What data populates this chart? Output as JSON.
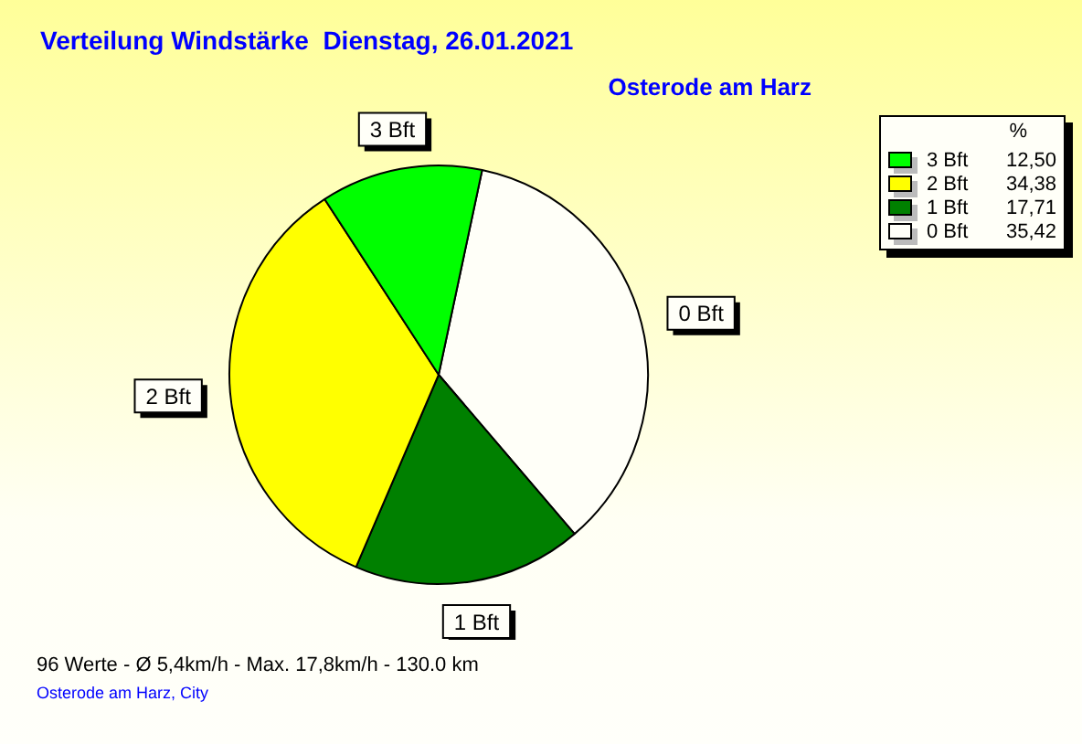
{
  "chart_data": {
    "type": "pie",
    "title": "Verteilung Windstärke  Dienstag, 26.01.2021",
    "subtitle": "Osterode am Harz",
    "legend_title": "%",
    "categories": [
      "3 Bft",
      "2 Bft",
      "1 Bft",
      "0 Bft"
    ],
    "values": [
      12.5,
      34.38,
      17.71,
      35.42
    ],
    "value_labels": [
      "12,50",
      "34,38",
      "17,71",
      "35,42"
    ],
    "colors": [
      "#00ff00",
      "#ffff00",
      "#008000",
      "#fffff8"
    ],
    "legend": "top right",
    "annotations": [
      "96 Werte   -   Ø 5,4km/h  -  Max. 17,8km/h   -   130.0 km",
      "Osterode am Harz, City"
    ]
  }
}
